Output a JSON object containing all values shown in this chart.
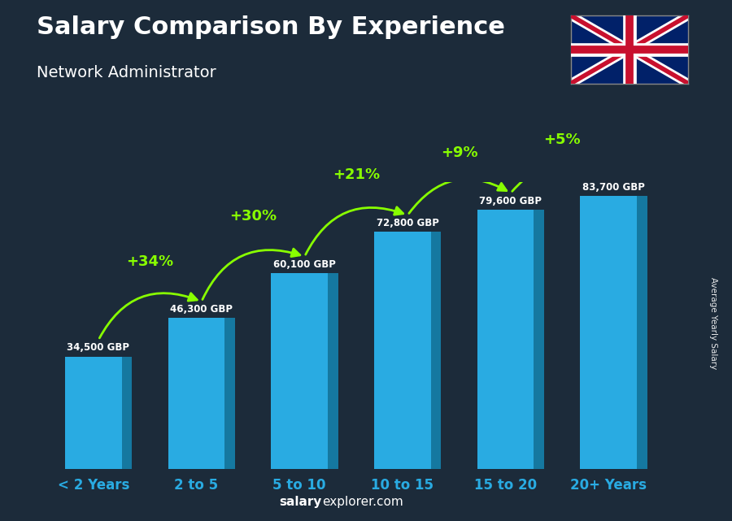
{
  "title": "Salary Comparison By Experience",
  "subtitle": "Network Administrator",
  "categories": [
    "< 2 Years",
    "2 to 5",
    "5 to 10",
    "10 to 15",
    "15 to 20",
    "20+ Years"
  ],
  "values": [
    34500,
    46300,
    60100,
    72800,
    79600,
    83700
  ],
  "salary_labels": [
    "34,500 GBP",
    "46,300 GBP",
    "60,100 GBP",
    "72,800 GBP",
    "79,600 GBP",
    "83,700 GBP"
  ],
  "pct_changes": [
    null,
    "+34%",
    "+30%",
    "+21%",
    "+9%",
    "+5%"
  ],
  "bar_face_color": "#29ABE2",
  "bar_side_color": "#1578A0",
  "bar_top_color": "#55CCEE",
  "background_color": "#1C2B3A",
  "title_color": "#ffffff",
  "subtitle_color": "#ffffff",
  "salary_label_color": "#ffffff",
  "pct_color": "#88FF00",
  "xlabel_color": "#29ABE2",
  "watermark_bold": "salary",
  "watermark_normal": "explorer.com",
  "ylabel_text": "Average Yearly Salary",
  "figsize": [
    9.0,
    6.41
  ],
  "dpi": 100
}
